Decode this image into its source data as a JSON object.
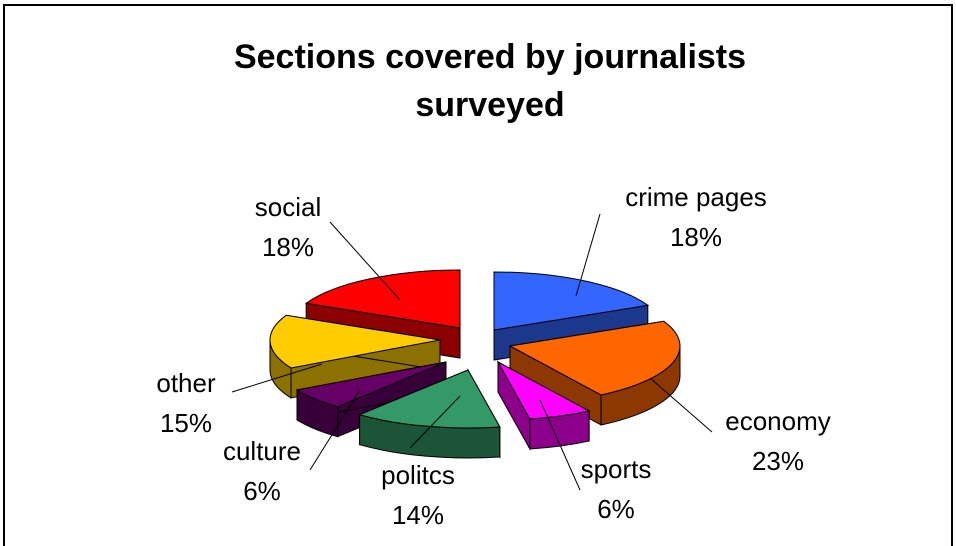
{
  "chart_data": {
    "type": "pie",
    "title": "Sections covered by journalists surveyed",
    "title_lines": [
      "Sections covered by journalists",
      "surveyed"
    ],
    "slices": [
      {
        "name": "crime pages",
        "value": 18,
        "label": "18%",
        "color": "#3366FF"
      },
      {
        "name": "economy",
        "value": 23,
        "label": "23%",
        "color": "#FF6600"
      },
      {
        "name": "sports",
        "value": 6,
        "label": "6%",
        "color": "#FF00FF"
      },
      {
        "name": "politcs",
        "value": 14,
        "label": "14%",
        "color": "#339966"
      },
      {
        "name": "culture",
        "value": 6,
        "label": "6%",
        "color": "#660066"
      },
      {
        "name": "other",
        "value": 15,
        "label": "15%",
        "color": "#FFCC00"
      },
      {
        "name": "social",
        "value": 18,
        "label": "18%",
        "color": "#FF0000"
      }
    ],
    "exploded": true,
    "three_d": true,
    "legend": "none"
  }
}
